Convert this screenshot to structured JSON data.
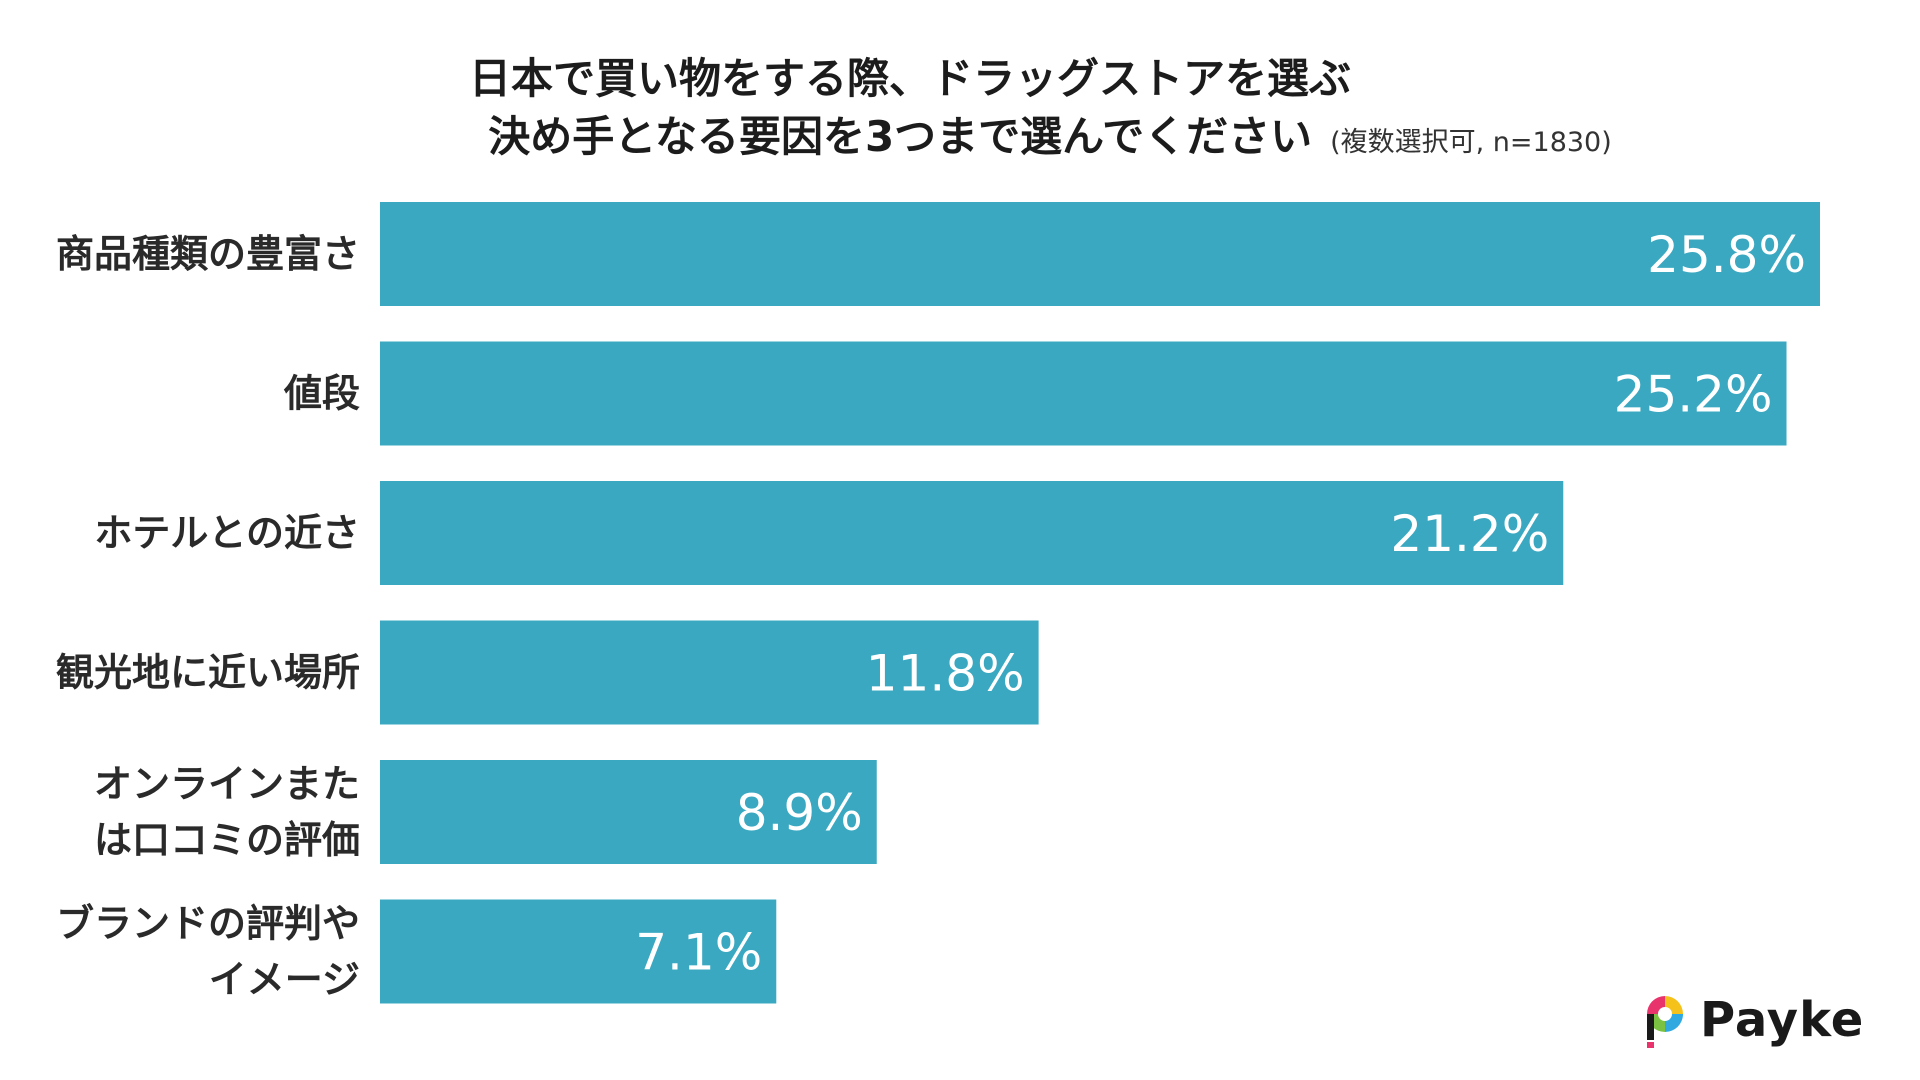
{
  "chart_data": {
    "type": "bar",
    "orientation": "horizontal",
    "title_line1": "日本で買い物をする際、ドラッグストアを選ぶ",
    "title_line2": "決め手となる要因を3つまで選んでください",
    "note": "(複数選択可, n=1830)",
    "categories": [
      [
        "商品種類の豊富さ"
      ],
      [
        "値段"
      ],
      [
        "ホテルとの近さ"
      ],
      [
        "観光地に近い場所"
      ],
      [
        "オンラインまた",
        "は口コミの評価"
      ],
      [
        "ブランドの評判や",
        "イメージ"
      ]
    ],
    "values": [
      25.8,
      25.2,
      21.2,
      11.8,
      8.9,
      7.1
    ],
    "value_labels": [
      "25.8%",
      "25.2%",
      "21.2%",
      "11.8%",
      "8.9%",
      "7.1%"
    ],
    "xlim": [
      0,
      25.8
    ],
    "bar_color": "#3AA8C1"
  },
  "logo": {
    "text": "Payke"
  }
}
